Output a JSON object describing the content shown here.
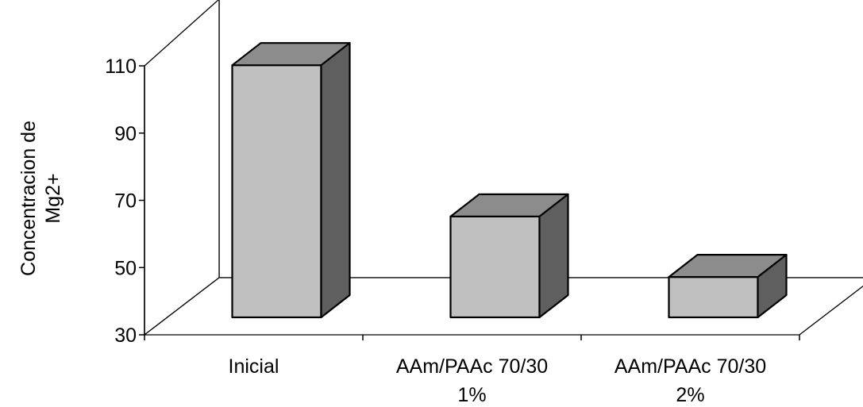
{
  "chart_data": {
    "type": "bar",
    "three_d": true,
    "categories": [
      "Inicial",
      "AAm/PAAc 70/30 1%",
      "AAm/PAAc 70/30 2%"
    ],
    "category_lines": [
      [
        "Inicial"
      ],
      [
        "AAm/PAAc 70/30",
        "1%"
      ],
      [
        "AAm/PAAc 70/30",
        "2%"
      ]
    ],
    "values": [
      105,
      60,
      42
    ],
    "title": "",
    "xlabel": "",
    "ylabel_lines": [
      "Concentracion de",
      "Mg2+"
    ],
    "ylim": [
      30,
      110
    ],
    "yticks": [
      "30",
      "50",
      "70",
      "90",
      "110"
    ],
    "grid": false,
    "legend": "none",
    "colors": {
      "bar_front": "#c0c0c0",
      "bar_top": "#8c8c8c",
      "bar_side": "#5f5f5f",
      "outline": "#000000",
      "background": "#ffffff"
    }
  }
}
